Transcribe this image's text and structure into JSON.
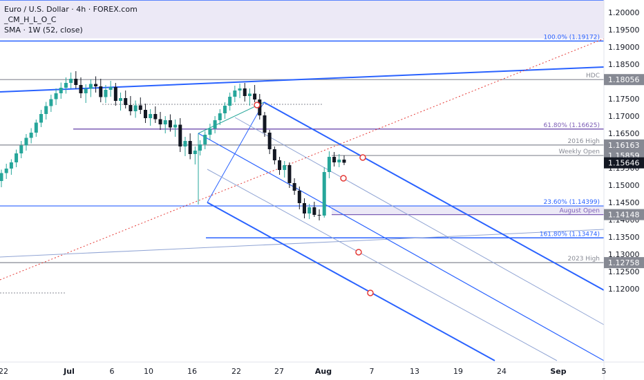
{
  "legend": {
    "symbol": "Euro / U.S. Dollar · 4h · FOREX.com",
    "indicator1": "_CM_H_L_O_C",
    "indicator2": "SMA · 1W (52, close)"
  },
  "colors": {
    "up": "#26a69a",
    "down": "#131722",
    "pitchfork": "#2962ff",
    "purple": "#7b5cb5",
    "gray": "#868993",
    "zone": "#ece9f6",
    "red": "#e53935",
    "navy": "#131722"
  },
  "chart_data": {
    "type": "candlestick",
    "title": "Euro / U.S. Dollar · 4h · FOREX.com",
    "y_ticks": [
      1.2,
      1.195,
      1.19,
      1.185,
      1.18,
      1.175,
      1.17,
      1.165,
      1.16,
      1.155,
      1.15,
      1.145,
      1.14,
      1.135,
      1.13,
      1.125,
      1.12
    ],
    "y_tick_labels": [
      "1.20000",
      "1.19500",
      "1.19000",
      "1.18500",
      "1.18000",
      "1.17500",
      "1.17000",
      "1.16500",
      "1.16000",
      "1.15500",
      "1.15000",
      "1.14500",
      "1.14000",
      "1.13500",
      "1.13000",
      "1.12500",
      "1.12000"
    ],
    "x_ticks": [
      "22",
      "Jul",
      "6",
      "10",
      "16",
      "22",
      "27",
      "Aug",
      "7",
      "13",
      "19",
      "24",
      "Sep",
      "5"
    ],
    "ylim": [
      1.1185,
      1.2038
    ],
    "levels": [
      {
        "value": 1.19172,
        "label": "100.0% (1.19172)",
        "color": "#2962ff"
      },
      {
        "value": 1.18056,
        "label": "HDC",
        "color": "#868993",
        "badge": "1.18056"
      },
      {
        "value": 1.16625,
        "label": "61.80% (1.16625)",
        "color": "#7b5cb5"
      },
      {
        "value": 1.16163,
        "label": "2016 High",
        "color": "#868993",
        "badge": "1.16163"
      },
      {
        "value": 1.15859,
        "label": "Weekly Open",
        "color": "#868993",
        "badge": "1.15859"
      },
      {
        "value": 1.14399,
        "label": "23.60% (1.14399)",
        "color": "#2962ff"
      },
      {
        "value": 1.14148,
        "label": "August Open",
        "color": "#7b5cb5",
        "badge": "1.14148"
      },
      {
        "value": 1.13474,
        "label": "161.80% (1.13474)",
        "color": "#2962ff"
      },
      {
        "value": 1.12758,
        "label": "2023 High",
        "color": "#868993",
        "badge": "1.12758"
      }
    ],
    "last_price": {
      "value": 1.15646,
      "label": "1.15646"
    },
    "zones": [
      {
        "from": 1.1925,
        "to": 1.2036
      },
      {
        "from": 1.14148,
        "to": 1.14399
      }
    ],
    "candles": [
      [
        1.1512,
        1.1545,
        1.1494,
        1.1535
      ],
      [
        1.1535,
        1.1562,
        1.1518,
        1.1548
      ],
      [
        1.1548,
        1.1575,
        1.153,
        1.1566
      ],
      [
        1.1566,
        1.1603,
        1.1552,
        1.1592
      ],
      [
        1.1592,
        1.1628,
        1.1578,
        1.1615
      ],
      [
        1.1615,
        1.1648,
        1.16,
        1.1637
      ],
      [
        1.1637,
        1.1665,
        1.1621,
        1.1652
      ],
      [
        1.1652,
        1.169,
        1.164,
        1.1681
      ],
      [
        1.1681,
        1.1718,
        1.1668,
        1.1706
      ],
      [
        1.1706,
        1.1741,
        1.169,
        1.1729
      ],
      [
        1.1729,
        1.1762,
        1.1712,
        1.1749
      ],
      [
        1.1749,
        1.178,
        1.1732,
        1.1766
      ],
      [
        1.1766,
        1.1797,
        1.175,
        1.1782
      ],
      [
        1.1782,
        1.1812,
        1.1765,
        1.1796
      ],
      [
        1.1796,
        1.1826,
        1.178,
        1.1808
      ],
      [
        1.1808,
        1.183,
        1.1779,
        1.179
      ],
      [
        1.179,
        1.1812,
        1.1752,
        1.1766
      ],
      [
        1.1766,
        1.1792,
        1.1738,
        1.1779
      ],
      [
        1.1779,
        1.1806,
        1.1755,
        1.1793
      ],
      [
        1.1793,
        1.1815,
        1.1768,
        1.1786
      ],
      [
        1.1786,
        1.1808,
        1.174,
        1.1755
      ],
      [
        1.1755,
        1.179,
        1.1738,
        1.1776
      ],
      [
        1.1776,
        1.1802,
        1.1756,
        1.1784
      ],
      [
        1.1784,
        1.1796,
        1.173,
        1.1744
      ],
      [
        1.1744,
        1.1768,
        1.1716,
        1.1752
      ],
      [
        1.1752,
        1.1774,
        1.1722,
        1.1732
      ],
      [
        1.1732,
        1.1758,
        1.1702,
        1.1714
      ],
      [
        1.1714,
        1.1745,
        1.1695,
        1.1731
      ],
      [
        1.1731,
        1.1754,
        1.1706,
        1.1718
      ],
      [
        1.1718,
        1.1736,
        1.168,
        1.1694
      ],
      [
        1.1694,
        1.172,
        1.1672,
        1.1706
      ],
      [
        1.1706,
        1.1728,
        1.168,
        1.1691
      ],
      [
        1.1691,
        1.1712,
        1.166,
        1.1676
      ],
      [
        1.1676,
        1.17,
        1.165,
        1.1688
      ],
      [
        1.1688,
        1.1705,
        1.1655,
        1.1667
      ],
      [
        1.1667,
        1.169,
        1.164,
        1.1675
      ],
      [
        1.1675,
        1.1694,
        1.1596,
        1.1612
      ],
      [
        1.1612,
        1.164,
        1.1584,
        1.1628
      ],
      [
        1.1628,
        1.165,
        1.1575,
        1.159
      ],
      [
        1.159,
        1.1612,
        1.156,
        1.16
      ],
      [
        1.16,
        1.163,
        1.1586,
        1.1618
      ],
      [
        1.1618,
        1.1656,
        1.1604,
        1.1646
      ],
      [
        1.1646,
        1.1678,
        1.163,
        1.1664
      ],
      [
        1.1664,
        1.17,
        1.165,
        1.1688
      ],
      [
        1.1688,
        1.172,
        1.1674,
        1.1708
      ],
      [
        1.1708,
        1.174,
        1.1692,
        1.173
      ],
      [
        1.173,
        1.1768,
        1.1716,
        1.1756
      ],
      [
        1.1756,
        1.1788,
        1.174,
        1.1774
      ],
      [
        1.1774,
        1.1794,
        1.1752,
        1.178
      ],
      [
        1.178,
        1.1796,
        1.1742,
        1.1758
      ],
      [
        1.1758,
        1.178,
        1.173,
        1.1765
      ],
      [
        1.1765,
        1.179,
        1.174,
        1.1748
      ],
      [
        1.1748,
        1.1764,
        1.169,
        1.1702
      ],
      [
        1.1702,
        1.1712,
        1.164,
        1.1652
      ],
      [
        1.1652,
        1.166,
        1.159,
        1.1604
      ],
      [
        1.1604,
        1.1612,
        1.156,
        1.1572
      ],
      [
        1.1572,
        1.1582,
        1.153,
        1.1544
      ],
      [
        1.1544,
        1.157,
        1.1522,
        1.1558
      ],
      [
        1.1558,
        1.1566,
        1.1492,
        1.1506
      ],
      [
        1.1506,
        1.152,
        1.1472,
        1.1484
      ],
      [
        1.1484,
        1.1496,
        1.143,
        1.1448
      ],
      [
        1.1448,
        1.1462,
        1.1404,
        1.1418
      ],
      [
        1.1418,
        1.1446,
        1.1402,
        1.1436
      ],
      [
        1.1436,
        1.1452,
        1.1408,
        1.1414
      ],
      [
        1.1414,
        1.143,
        1.1398,
        1.1412
      ],
      [
        1.1412,
        1.1552,
        1.1406,
        1.1538
      ],
      [
        1.1538,
        1.1598,
        1.152,
        1.1582
      ],
      [
        1.1582,
        1.1596,
        1.1554,
        1.1566
      ],
      [
        1.1566,
        1.159,
        1.1552,
        1.1574
      ],
      [
        1.1574,
        1.1586,
        1.1558,
        1.1565
      ]
    ]
  }
}
